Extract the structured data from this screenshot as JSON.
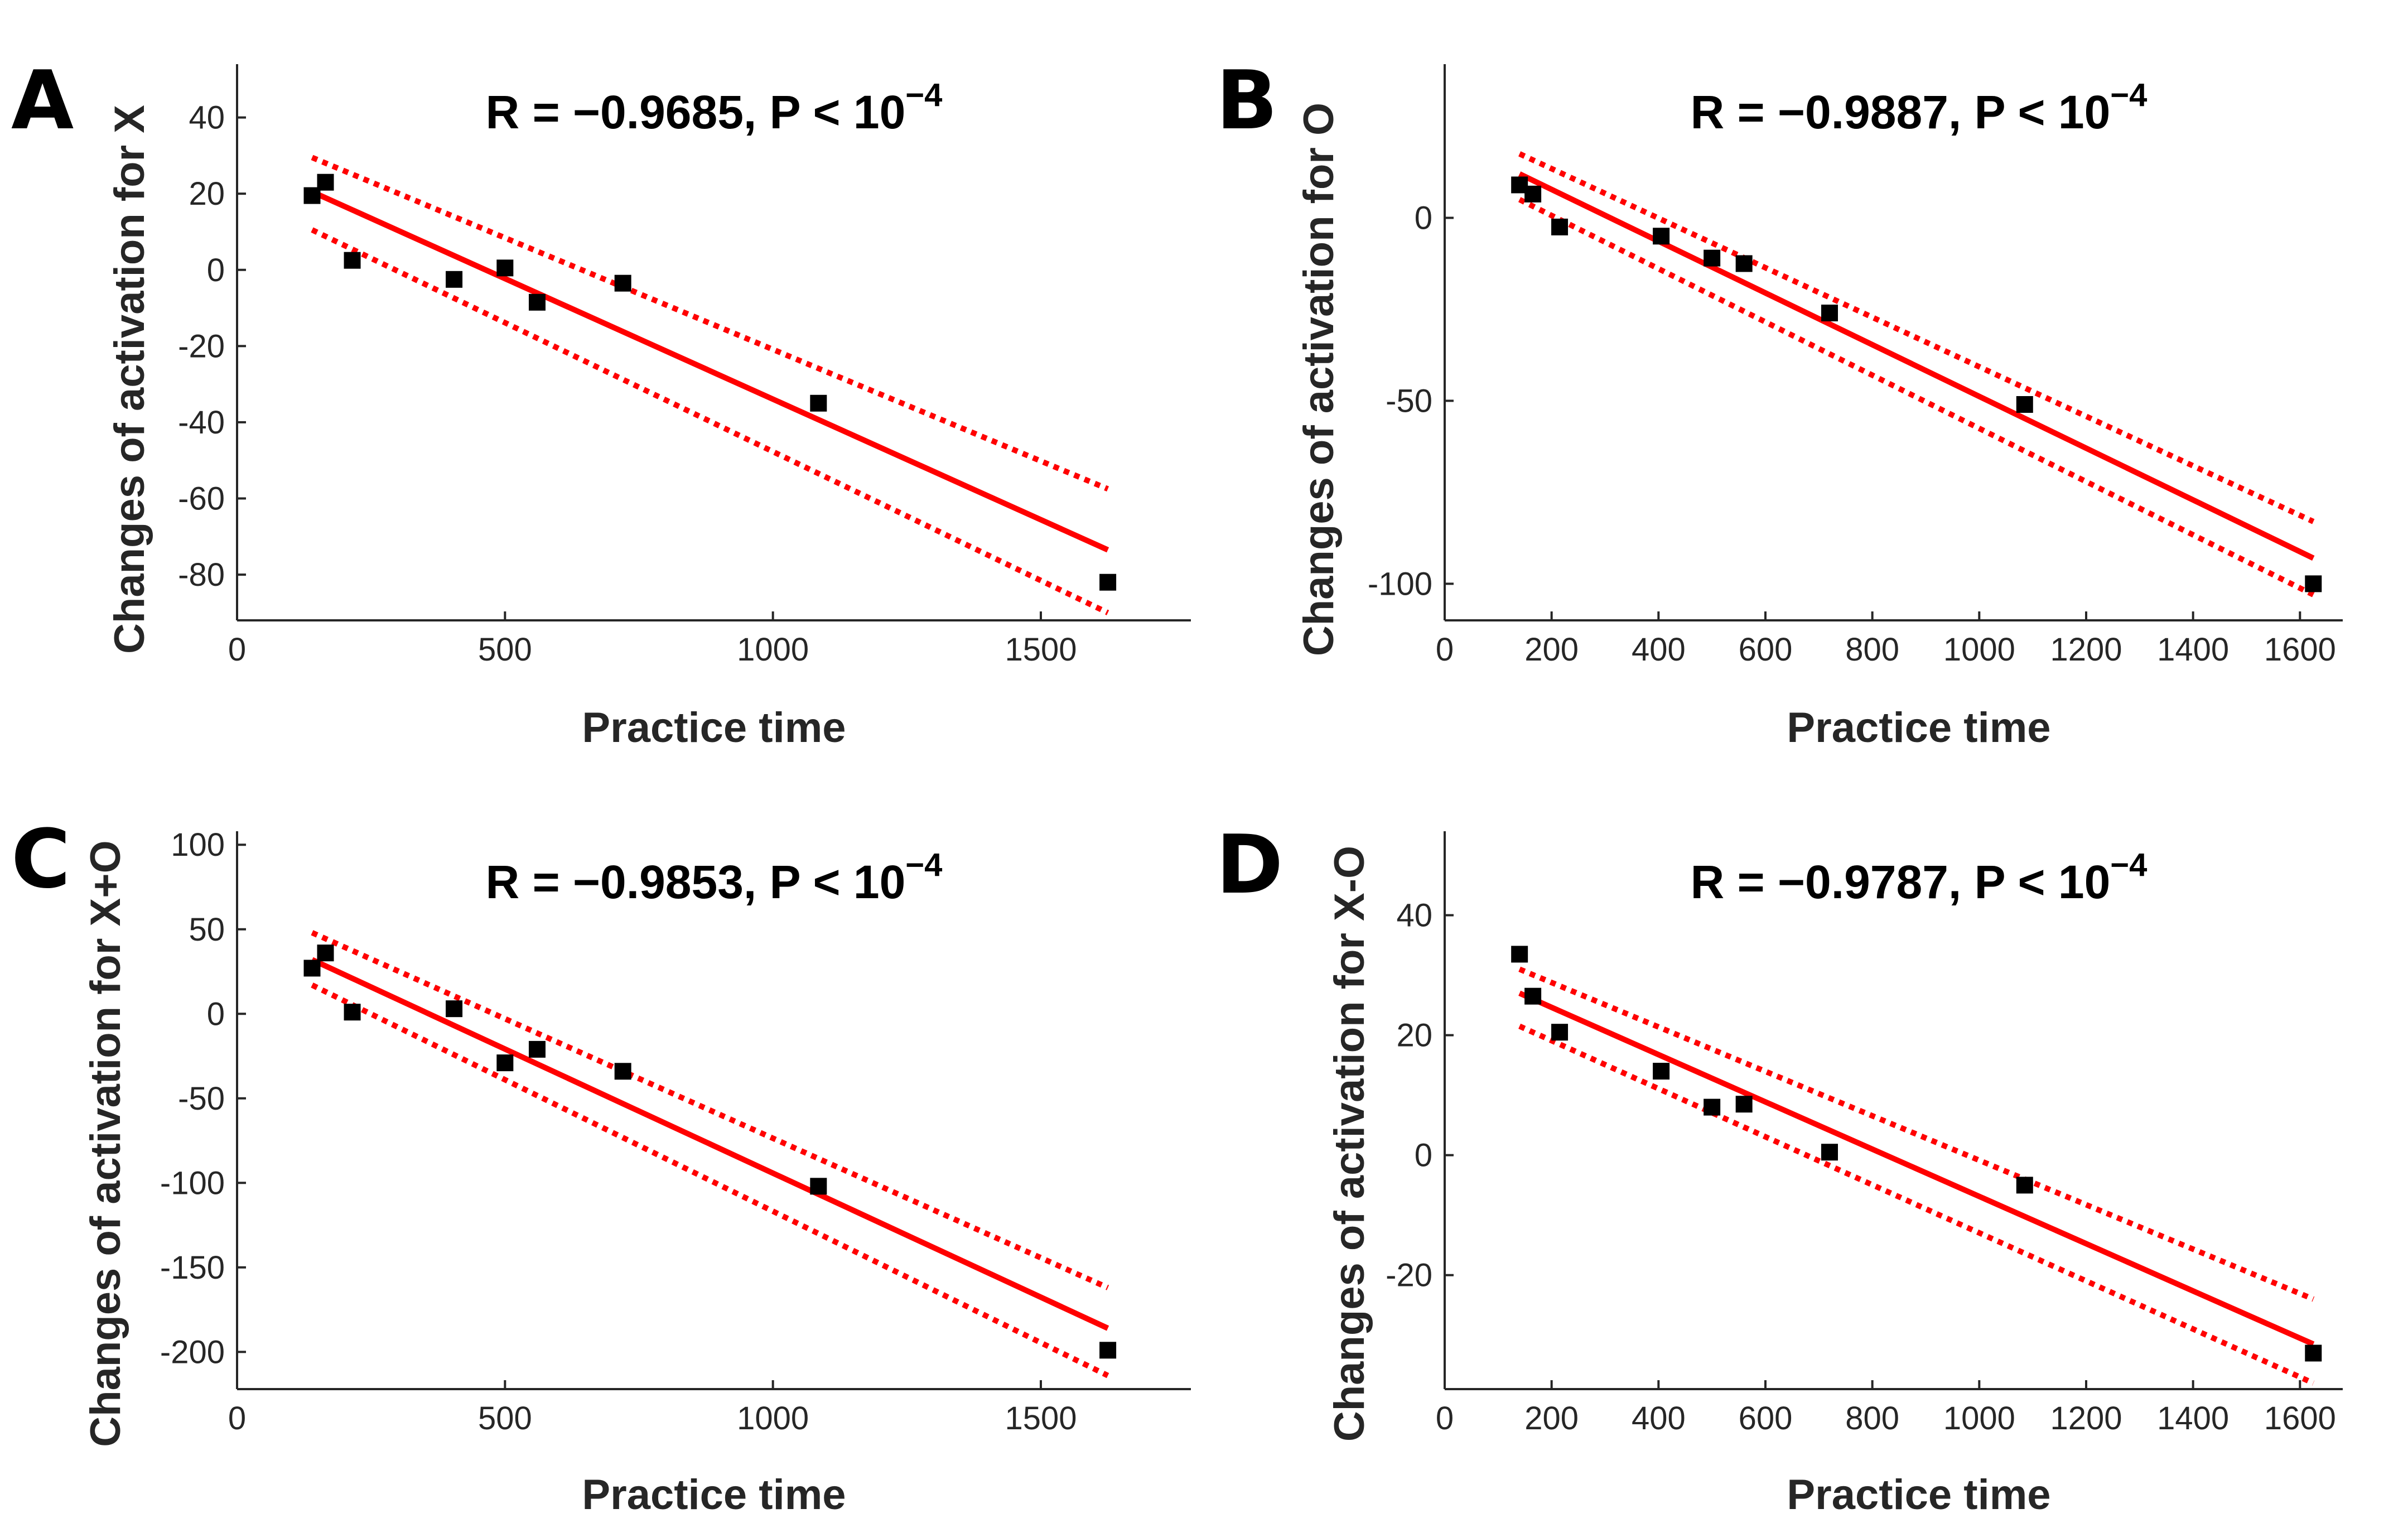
{
  "colors": {
    "fit": "#ff0000",
    "ci": "#ff0000",
    "points": "#000000",
    "axes": "#262626"
  },
  "chart_data": [
    {
      "type": "scatter",
      "panel": "A",
      "title": "",
      "stat": {
        "r_text": "R = −0.9685, P < 10",
        "exponent": "−4"
      },
      "xlabel": "Practice time",
      "ylabel": "Changes of activation for X",
      "xlim": [
        0,
        1780
      ],
      "ylim": [
        -92,
        54
      ],
      "xticks": [
        0,
        500,
        1000,
        1500
      ],
      "yticks": [
        -80,
        -60,
        -40,
        -20,
        0,
        20,
        40
      ],
      "x": [
        140,
        165,
        215,
        405,
        500,
        560,
        720,
        1085,
        1625
      ],
      "y": [
        19.5,
        23,
        2.5,
        -2.5,
        0.5,
        -8.5,
        -3.5,
        -35,
        -82
      ],
      "fit": {
        "x": [
          140,
          1625
        ],
        "y": [
          20.5,
          -73.5
        ]
      },
      "ci_upper": {
        "x": [
          140,
          1625
        ],
        "y": [
          29.5,
          -57.5
        ]
      },
      "ci_lower": {
        "x": [
          140,
          1625
        ],
        "y": [
          10.5,
          -90
        ]
      }
    },
    {
      "type": "scatter",
      "panel": "B",
      "title": "",
      "stat": {
        "r_text": "R = −0.9887, P < 10",
        "exponent": "−4"
      },
      "xlabel": "Practice time",
      "ylabel": "Changes of activation for O",
      "xlim": [
        0,
        1680
      ],
      "ylim": [
        -110,
        42
      ],
      "xticks": [
        0,
        200,
        400,
        600,
        800,
        1000,
        1200,
        1400,
        1600
      ],
      "yticks": [
        -100,
        -50,
        0
      ],
      "x": [
        140,
        165,
        215,
        405,
        500,
        560,
        720,
        1085,
        1625
      ],
      "y": [
        9,
        6.5,
        -2.5,
        -5,
        -11,
        -12.5,
        -26,
        -51,
        -100
      ],
      "fit": {
        "x": [
          140,
          1625
        ],
        "y": [
          12,
          -93
        ]
      },
      "ci_upper": {
        "x": [
          140,
          1625
        ],
        "y": [
          17.5,
          -83
        ]
      },
      "ci_lower": {
        "x": [
          140,
          1625
        ],
        "y": [
          5,
          -103
        ]
      }
    },
    {
      "type": "scatter",
      "panel": "C",
      "title": "",
      "stat": {
        "r_text": "R = −0.9853, P < 10",
        "exponent": "−4"
      },
      "xlabel": "Practice time",
      "ylabel": "Changes of activation for X+O",
      "xlim": [
        0,
        1780
      ],
      "ylim": [
        -222,
        108
      ],
      "xticks": [
        0,
        500,
        1000,
        1500
      ],
      "yticks": [
        -200,
        -150,
        -100,
        -50,
        0,
        50,
        100
      ],
      "x": [
        140,
        165,
        215,
        405,
        500,
        560,
        720,
        1085,
        1625
      ],
      "y": [
        27,
        36,
        1,
        3,
        -29,
        -21,
        -34,
        -102,
        -199
      ],
      "fit": {
        "x": [
          140,
          1625
        ],
        "y": [
          32,
          -186
        ]
      },
      "ci_upper": {
        "x": [
          140,
          1625
        ],
        "y": [
          48,
          -162
        ]
      },
      "ci_lower": {
        "x": [
          140,
          1625
        ],
        "y": [
          17,
          -214
        ]
      }
    },
    {
      "type": "scatter",
      "panel": "D",
      "title": "",
      "stat": {
        "r_text": "R = −0.9787, P < 10",
        "exponent": "−4"
      },
      "xlabel": "Practice time",
      "ylabel": "Changes of activation for X-O",
      "xlim": [
        0,
        1680
      ],
      "ylim": [
        -39,
        54
      ],
      "xticks": [
        0,
        200,
        400,
        600,
        800,
        1000,
        1200,
        1400,
        1600
      ],
      "yticks": [
        -20,
        0,
        20,
        40
      ],
      "x": [
        140,
        165,
        215,
        405,
        500,
        560,
        720,
        1085,
        1625
      ],
      "y": [
        33.5,
        26.5,
        20.5,
        14,
        8,
        8.5,
        0.5,
        -5,
        -33
      ],
      "fit": {
        "x": [
          140,
          1625
        ],
        "y": [
          27,
          -31.5
        ]
      },
      "ci_upper": {
        "x": [
          140,
          1625
        ],
        "y": [
          31,
          -24
        ]
      },
      "ci_lower": {
        "x": [
          140,
          1625
        ],
        "y": [
          21.5,
          -38
        ]
      }
    }
  ]
}
